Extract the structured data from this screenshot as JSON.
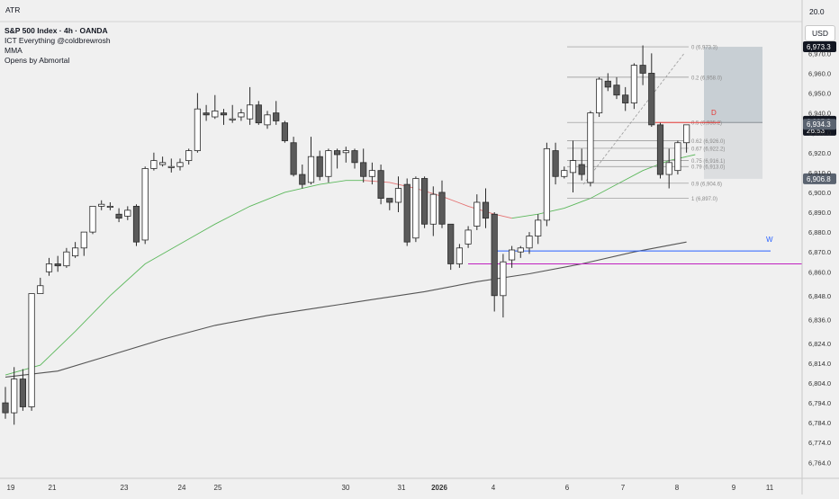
{
  "indicator_pane": {
    "title": "ATR",
    "value": "20.0"
  },
  "legend": {
    "symbol_line": "S&P 500 Index · 4h · OANDA",
    "indicators": [
      "ICT Everything @coldbrewrosh",
      "MMA",
      "Opens by Abmortal"
    ]
  },
  "currency_button": "USD",
  "colors": {
    "background": "#f0f0f0",
    "bull_body": "#ffffff",
    "bear_body": "#5a5a5a",
    "candle_outline": "#2a2a2a",
    "ma_green": "#5cb85c",
    "ma_red": "#e57373",
    "ma_gray": "#555555",
    "weekly_open_line": "#2962ff",
    "magenta_line": "#c020c0",
    "daily_open_line": "#e53935"
  },
  "chart_data": {
    "type": "candlestick",
    "ylim": [
      6756,
      6986
    ],
    "y_ticks": [
      "6,980.0",
      "6,970.0",
      "6,960.0",
      "6,950.0",
      "6,940.0",
      "6,930.0",
      "6,920.0",
      "6,910.0",
      "6,900.0",
      "6,890.0",
      "6,880.0",
      "6,870.0",
      "6,860.0",
      "6,848.0",
      "6,836.0",
      "6,824.0",
      "6,814.0",
      "6,804.0",
      "6,794.0",
      "6,784.0",
      "6,774.0",
      "6,764.0"
    ],
    "x_ticks": [
      "19",
      "21",
      "23",
      "24",
      "25",
      "30",
      "31",
      "2026",
      "4",
      "6",
      "7",
      "8",
      "9",
      "11"
    ],
    "candles": [
      [
        6794,
        6802,
        6786,
        6789
      ],
      [
        6789,
        6812,
        6783,
        6806
      ],
      [
        6806,
        6811,
        6790,
        6792
      ],
      [
        6792,
        6849,
        6790,
        6849
      ],
      [
        6849,
        6857,
        6849,
        6853
      ],
      [
        6860,
        6867,
        6858,
        6864
      ],
      [
        6864,
        6868,
        6860,
        6863
      ],
      [
        6863,
        6872,
        6862,
        6870
      ],
      [
        6868,
        6875,
        6867,
        6872
      ],
      [
        6872,
        6880,
        6868,
        6880
      ],
      [
        6880,
        6893,
        6879,
        6893
      ],
      [
        6893,
        6896,
        6891,
        6894
      ],
      [
        6893,
        6895,
        6891,
        6893
      ],
      [
        6889,
        6892,
        6885,
        6887
      ],
      [
        6888,
        6893,
        6886,
        6891
      ],
      [
        6893,
        6894,
        6873,
        6875
      ],
      [
        6876,
        6913,
        6874,
        6912
      ],
      [
        6912,
        6920,
        6911,
        6916
      ],
      [
        6914,
        6918,
        6913,
        6915
      ],
      [
        6913,
        6917,
        6910,
        6913
      ],
      [
        6913,
        6917,
        6911,
        6915
      ],
      [
        6916,
        6922,
        6914,
        6921
      ],
      [
        6921,
        6950,
        6920,
        6942
      ],
      [
        6940,
        6944,
        6936,
        6939
      ],
      [
        6938,
        6949,
        6937,
        6941
      ],
      [
        6940,
        6942,
        6934,
        6939
      ],
      [
        6937,
        6944,
        6935,
        6937
      ],
      [
        6938,
        6942,
        6936,
        6940
      ],
      [
        6937,
        6953,
        6934,
        6944
      ],
      [
        6944,
        6946,
        6934,
        6935
      ],
      [
        6934,
        6941,
        6932,
        6939
      ],
      [
        6940,
        6946,
        6934,
        6936
      ],
      [
        6935,
        6936,
        6925,
        6926
      ],
      [
        6925,
        6928,
        6908,
        6909
      ],
      [
        6909,
        6914,
        6902,
        6904
      ],
      [
        6905,
        6928,
        6904,
        6918
      ],
      [
        6918,
        6921,
        6906,
        6908
      ],
      [
        6908,
        6922,
        6905,
        6921
      ],
      [
        6921,
        6922,
        6912,
        6919
      ],
      [
        6920,
        6923,
        6915,
        6921
      ],
      [
        6921,
        6922,
        6912,
        6915
      ],
      [
        6915,
        6922,
        6905,
        6908
      ],
      [
        6908,
        6915,
        6904,
        6911
      ],
      [
        6911,
        6914,
        6894,
        6897
      ],
      [
        6897,
        6897,
        6891,
        6895
      ],
      [
        6895,
        6908,
        6890,
        6902
      ],
      [
        6904,
        6907,
        6873,
        6875
      ],
      [
        6877,
        6908,
        6875,
        6907
      ],
      [
        6907,
        6908,
        6882,
        6884
      ],
      [
        6884,
        6903,
        6878,
        6899
      ],
      [
        6900,
        6906,
        6882,
        6884
      ],
      [
        6884,
        6884,
        6861,
        6864
      ],
      [
        6864,
        6874,
        6862,
        6872
      ],
      [
        6874,
        6883,
        6872,
        6881
      ],
      [
        6883,
        6899,
        6881,
        6895
      ],
      [
        6895,
        6902,
        6882,
        6887
      ],
      [
        6889,
        6890,
        6840,
        6848
      ],
      [
        6848,
        6869,
        6837,
        6865
      ],
      [
        6866,
        6873,
        6862,
        6871
      ],
      [
        6870,
        6873,
        6867,
        6872
      ],
      [
        6872,
        6880,
        6869,
        6878
      ],
      [
        6878,
        6889,
        6874,
        6886
      ],
      [
        6886,
        6925,
        6883,
        6922
      ],
      [
        6921,
        6925,
        6904,
        6908
      ],
      [
        6908,
        6913,
        6907,
        6911
      ],
      [
        6910,
        6926,
        6900,
        6916
      ],
      [
        6914,
        6922,
        6906,
        6909
      ],
      [
        6905,
        6941,
        6903,
        6940
      ],
      [
        6940,
        6958,
        6938,
        6957
      ],
      [
        6956,
        6960,
        6951,
        6953
      ],
      [
        6954,
        6958,
        6947,
        6949
      ],
      [
        6949,
        6953,
        6941,
        6945
      ],
      [
        6945,
        6965,
        6942,
        6964
      ],
      [
        6964,
        6974,
        6954,
        6960
      ],
      [
        6960,
        6970,
        6933,
        6934
      ],
      [
        6934,
        6935,
        6907,
        6909
      ],
      [
        6909,
        6922,
        6902,
        6915
      ],
      [
        6911,
        6926,
        6909,
        6925
      ],
      [
        6925,
        6934,
        6920,
        6934
      ]
    ],
    "moving_averages": [
      {
        "color": "green",
        "points": [
          [
            0,
            6808
          ],
          [
            4,
            6813
          ],
          [
            8,
            6830
          ],
          [
            12,
            6848
          ],
          [
            16,
            6864
          ],
          [
            20,
            6874
          ],
          [
            24,
            6884
          ],
          [
            28,
            6893
          ],
          [
            32,
            6900
          ],
          [
            36,
            6904
          ],
          [
            39,
            6906
          ],
          [
            41,
            6906
          ]
        ]
      },
      {
        "color": "red",
        "points": [
          [
            41,
            6906
          ],
          [
            44,
            6905
          ],
          [
            47,
            6902
          ],
          [
            50,
            6898
          ],
          [
            53,
            6893
          ],
          [
            56,
            6889
          ],
          [
            58,
            6887
          ]
        ]
      },
      {
        "color": "green",
        "points": [
          [
            58,
            6887
          ],
          [
            61,
            6889
          ],
          [
            64,
            6892
          ],
          [
            67,
            6897
          ],
          [
            70,
            6904
          ],
          [
            73,
            6911
          ],
          [
            76,
            6916
          ],
          [
            79,
            6919
          ]
        ]
      },
      {
        "color": "gray",
        "points": [
          [
            0,
            6807
          ],
          [
            6,
            6810
          ],
          [
            12,
            6818
          ],
          [
            18,
            6826
          ],
          [
            24,
            6833
          ],
          [
            30,
            6838
          ],
          [
            36,
            6842
          ],
          [
            42,
            6846
          ],
          [
            48,
            6850
          ],
          [
            54,
            6855
          ],
          [
            60,
            6859
          ],
          [
            66,
            6864
          ],
          [
            72,
            6870
          ],
          [
            78,
            6875
          ]
        ]
      }
    ],
    "fibonacci": {
      "levels": [
        {
          "label": "0 (6,973.3)",
          "value": 6973.3
        },
        {
          "label": "0.2 (6,958.0)",
          "value": 6958.0
        },
        {
          "label": "0.5 (6,935.2)",
          "value": 6935.2
        },
        {
          "label": "0.62 (6,926.0)",
          "value": 6926.0
        },
        {
          "label": "0.67 (6,922.2)",
          "value": 6922.2
        },
        {
          "label": "0.75 (6,916.1)",
          "value": 6916.1
        },
        {
          "label": "0.79 (6,913.0)",
          "value": 6913.0
        },
        {
          "label": "0.9 (6,904.6)",
          "value": 6904.6
        },
        {
          "label": "1 (6,897.0)",
          "value": 6897.0
        }
      ]
    },
    "annotations": [
      {
        "label": "D",
        "value": 6935.2,
        "color": "#e53935"
      },
      {
        "label": "W",
        "value": 6870.5,
        "color": "#2962ff"
      }
    ],
    "magenta_level": 6864.0,
    "position_box": {
      "target": 6973.3,
      "entry": 6935.2,
      "stop": 6906.8
    },
    "price_tags": [
      {
        "label": "6,973.3",
        "value": 6973.3,
        "bg": "#131722"
      },
      {
        "label": "6,935.8",
        "value": 6935.8,
        "bg": "#131722",
        "sub": "26:53"
      },
      {
        "label": "6,934.3",
        "value": 6934.3,
        "bg": "#5a6370"
      },
      {
        "label": "6,906.8",
        "value": 6906.8,
        "bg": "#5a6370"
      }
    ]
  }
}
